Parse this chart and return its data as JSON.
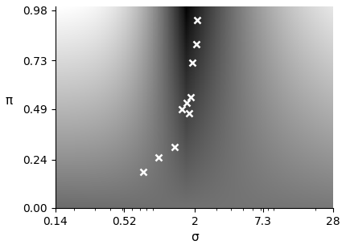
{
  "xlabel": "σ",
  "ylabel": "π",
  "sigma_ticks": [
    0.14,
    0.52,
    2,
    7.3,
    28
  ],
  "pi_ticks": [
    0,
    0.24,
    0.49,
    0.73,
    0.98
  ],
  "sigma_min": 0.14,
  "sigma_max": 28,
  "pi_min": 0,
  "pi_max": 1.0,
  "cross_sigma": [
    0.75,
    1.0,
    1.35,
    1.55,
    1.7,
    1.8,
    1.85,
    1.9,
    2.05,
    2.1
  ],
  "cross_pi": [
    0.18,
    0.25,
    0.3,
    0.49,
    0.52,
    0.47,
    0.55,
    0.72,
    0.81,
    0.93
  ],
  "n_sigma": 400,
  "n_pi": 300,
  "background_color": "#ffffff"
}
